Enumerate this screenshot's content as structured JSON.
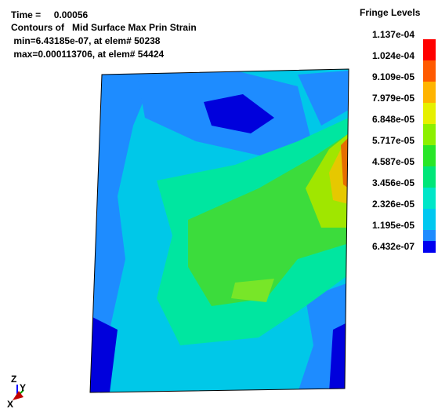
{
  "header": {
    "lines": [
      "Time =     0.00056",
      "Contours of   Mid Surface Max Prin Strain",
      " min=6.43185e-07, at elem# 50238",
      " max=0.000113706, at elem# 54424"
    ]
  },
  "legend": {
    "title": "Fringe Levels",
    "levels": [
      "1.137e-04",
      "1.024e-04",
      "9.109e-05",
      "7.979e-05",
      "6.848e-05",
      "5.717e-05",
      "4.587e-05",
      "3.456e-05",
      "2.326e-05",
      "1.195e-05",
      "6.432e-07"
    ]
  },
  "triad": {
    "z": "Z",
    "y": "Y",
    "x": "X"
  }
}
